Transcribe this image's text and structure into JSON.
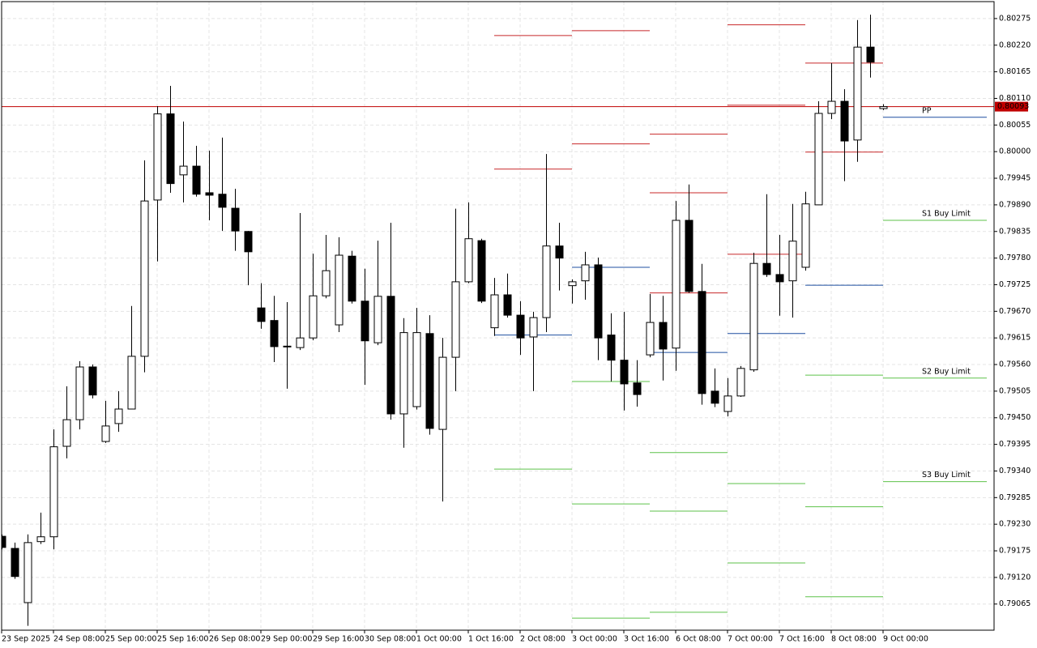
{
  "chart_data": {
    "type": "candlestick",
    "categories": [
      "23 Sep 2025",
      null,
      null,
      null,
      "24 Sep 08:00",
      null,
      null,
      null,
      "25 Sep 00:00",
      null,
      null,
      null,
      "25 Sep 16:00",
      null,
      null,
      null,
      "26 Sep 08:00",
      null,
      null,
      null,
      "29 Sep 00:00",
      null,
      null,
      null,
      "29 Sep 16:00",
      null,
      null,
      null,
      "30 Sep 08:00",
      null,
      null,
      null,
      "1 Oct 00:00",
      null,
      null,
      null,
      "1 Oct 16:00",
      null,
      null,
      null,
      "2 Oct 08:00",
      null,
      null,
      null,
      "3 Oct 00:00",
      null,
      null,
      null,
      "3 Oct 16:00",
      null,
      null,
      null,
      "6 Oct 08:00",
      null,
      null,
      null,
      "7 Oct 00:00",
      null,
      null,
      null,
      "7 Oct 16:00",
      null,
      null,
      null,
      "8 Oct 08:00",
      null,
      null,
      null,
      "9 Oct 00:00"
    ],
    "open": [
      0.79205,
      0.7918,
      0.79068,
      0.79194,
      0.79204,
      0.79391,
      0.79446,
      0.79555,
      0.79401,
      0.79438,
      0.79468,
      0.79577,
      0.799,
      0.80078,
      0.79952,
      0.7997,
      0.79915,
      0.79912,
      0.79883,
      0.79835,
      0.79677,
      0.79651,
      0.79597,
      0.79595,
      0.79615,
      0.79702,
      0.79642,
      0.79784,
      0.79691,
      0.79605,
      0.79701,
      0.79458,
      0.79473,
      0.79624,
      0.79426,
      0.79575,
      0.79731,
      0.79816,
      0.79636,
      0.79704,
      0.79662,
      0.79617,
      0.79657,
      0.79805,
      0.79723,
      0.79733,
      0.79766,
      0.79621,
      0.79569,
      0.79522,
      0.7958,
      0.79647,
      0.79594,
      0.79858,
      0.79711,
      0.79505,
      0.79463,
      0.79495,
      0.79549,
      0.79769,
      0.79746,
      0.79733,
      0.79761,
      0.7989,
      0.80079,
      0.80104,
      0.80024,
      0.80216,
      0.80089
    ],
    "high": [
      0.79209,
      0.79192,
      0.79209,
      0.79254,
      0.79426,
      0.79515,
      0.79567,
      0.7956,
      0.79485,
      0.79505,
      0.79681,
      0.79982,
      0.80094,
      0.80136,
      0.80062,
      0.80012,
      0.80002,
      0.80029,
      0.79923,
      0.79836,
      0.79728,
      0.79702,
      0.79689,
      0.79873,
      0.79789,
      0.79828,
      0.79823,
      0.79795,
      0.79758,
      0.79816,
      0.79853,
      0.79656,
      0.79677,
      0.79662,
      0.79615,
      0.79882,
      0.79895,
      0.7982,
      0.79739,
      0.79748,
      0.79691,
      0.79669,
      0.79995,
      0.79853,
      0.79736,
      0.79793,
      0.79781,
      0.79666,
      0.79669,
      0.79569,
      0.79706,
      0.79702,
      0.79898,
      0.79932,
      0.79768,
      0.79552,
      0.79532,
      0.79557,
      0.79791,
      0.79912,
      0.79828,
      0.79892,
      0.79917,
      0.80104,
      0.80183,
      0.80129,
      0.80272,
      0.80283,
      0.80098
    ],
    "low": [
      0.79178,
      0.79117,
      0.7902,
      0.79189,
      0.79178,
      0.79366,
      0.79426,
      0.7949,
      0.79398,
      0.79421,
      0.79468,
      0.79544,
      0.79773,
      0.79915,
      0.79895,
      0.79907,
      0.79858,
      0.79836,
      0.79795,
      0.79724,
      0.79634,
      0.79565,
      0.7951,
      0.7959,
      0.7961,
      0.79697,
      0.79627,
      0.79686,
      0.79518,
      0.796,
      0.79446,
      0.79388,
      0.79467,
      0.79415,
      0.79277,
      0.79505,
      0.79728,
      0.79687,
      0.79619,
      0.79657,
      0.7958,
      0.79505,
      0.79627,
      0.79713,
      0.79686,
      0.79694,
      0.79569,
      0.79525,
      0.79465,
      0.79473,
      0.79575,
      0.79527,
      0.79547,
      0.79708,
      0.79477,
      0.79472,
      0.79453,
      0.79493,
      0.79545,
      0.79741,
      0.79661,
      0.79657,
      0.79754,
      0.7989,
      0.80067,
      0.79939,
      0.79979,
      0.80153,
      0.80086
    ],
    "close": [
      0.79182,
      0.79122,
      0.79192,
      0.79204,
      0.7939,
      0.79446,
      0.79555,
      0.79497,
      0.79433,
      0.79468,
      0.79577,
      0.79898,
      0.80078,
      0.79934,
      0.7997,
      0.79912,
      0.7991,
      0.79885,
      0.79836,
      0.79793,
      0.79649,
      0.79597,
      0.79598,
      0.79615,
      0.79702,
      0.79754,
      0.79786,
      0.79691,
      0.79609,
      0.79701,
      0.79458,
      0.79626,
      0.79626,
      0.79428,
      0.79575,
      0.79731,
      0.7982,
      0.79691,
      0.79704,
      0.79662,
      0.79615,
      0.79657,
      0.79805,
      0.7978,
      0.79731,
      0.79766,
      0.79615,
      0.79569,
      0.7952,
      0.79498,
      0.79647,
      0.79592,
      0.79858,
      0.79711,
      0.795,
      0.7948,
      0.79495,
      0.79552,
      0.79769,
      0.79746,
      0.79731,
      0.79815,
      0.79892,
      0.80079,
      0.80104,
      0.80022,
      0.80216,
      0.80185,
      0.80093
    ],
    "up_color": "#ffffff",
    "down_color": "#000000",
    "ylim": [
      0.79011,
      0.8031
    ],
    "yticks": [
      0.80275,
      {
        "value": 0.8022,
        "label": "0.80220"
      },
      0.80165,
      {
        "value": 0.8011,
        "label": "0.80110"
      },
      0.80055,
      {
        "value": 0.8,
        "label": "0.80000"
      },
      0.79945,
      {
        "value": 0.7989,
        "label": "0.79890"
      },
      0.79835,
      {
        "value": 0.7978,
        "label": "0.79780"
      },
      0.79725,
      {
        "value": 0.7967,
        "label": "0.79670"
      },
      0.79615,
      {
        "value": 0.7956,
        "label": "0.79560"
      },
      0.79505,
      {
        "value": 0.7945,
        "label": "0.79450"
      },
      0.79395,
      {
        "value": 0.7934,
        "label": "0.79340"
      },
      0.79285,
      {
        "value": 0.7923,
        "label": "0.79230"
      },
      0.79175,
      {
        "value": 0.7912,
        "label": "0.79120"
      },
      0.79065
    ],
    "grid": true,
    "last_price": 0.80093,
    "last_price_color": "#c00000",
    "resistance_color": "#c8282a",
    "pivot_color": "#1f4fa0",
    "support_color": "#5ec24a",
    "pivot_levels": [
      {
        "resistance": [
          0.79964,
          0.8024
        ],
        "pivot": 0.79621,
        "support": [
          0.79344
        ]
      },
      {
        "resistance": [
          0.80016,
          0.8025
        ],
        "pivot": 0.79761,
        "support": [
          0.79525,
          0.79272,
          0.79036
        ]
      },
      {
        "resistance": [
          0.79708,
          0.79915,
          0.80036
        ],
        "pivot": 0.79585,
        "support": [
          0.79378,
          0.79257,
          0.79048
        ]
      },
      {
        "resistance": [
          0.79788,
          0.80096,
          0.80262
        ],
        "pivot": 0.79624,
        "support": [
          0.79314,
          0.7915
        ]
      },
      {
        "resistance": [
          0.79999,
          0.80183
        ],
        "pivot": 0.79724,
        "support": [
          0.79538,
          0.79266,
          0.7908
        ]
      },
      {
        "pivot": 0.80071,
        "pivot_label": "PP",
        "support": [
          0.79858,
          0.79532,
          0.79318
        ],
        "support_labels": [
          "S1 Buy Limit",
          "S2 Buy Limit",
          "S3 Buy Limit"
        ]
      }
    ]
  }
}
